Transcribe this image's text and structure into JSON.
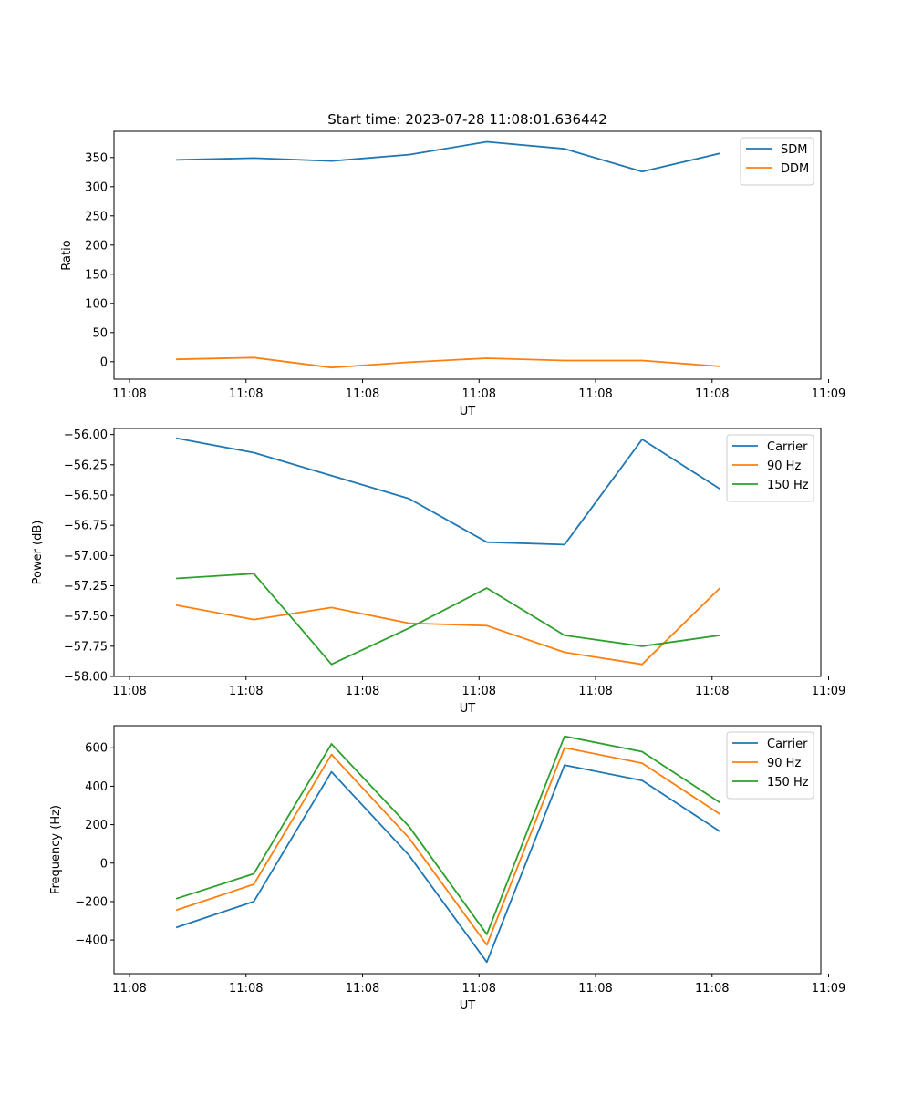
{
  "figure": {
    "title": "Start time: 2023-07-28 11:08:01.636442"
  },
  "chart_data": [
    {
      "type": "line",
      "title": "Start time: 2023-07-28 11:08:01.636442",
      "xlabel": "UT",
      "ylabel": "Ratio",
      "x": [
        1,
        2,
        3,
        4,
        5,
        6,
        7,
        8
      ],
      "xlim": [
        0.2,
        9.3
      ],
      "ylim": [
        -30,
        395
      ],
      "yticks": [
        0,
        50,
        100,
        150,
        200,
        250,
        300,
        350
      ],
      "yticklabels": [
        "0",
        "50",
        "100",
        "150",
        "200",
        "250",
        "300",
        "350"
      ],
      "xticks": [
        0.4,
        1.9,
        3.4,
        4.9,
        6.4,
        7.9,
        9.4
      ],
      "xticklabels": [
        "11:08",
        "11:08",
        "11:08",
        "11:08",
        "11:08",
        "11:08",
        "11:09"
      ],
      "legend_position": "top-right",
      "series": [
        {
          "name": "SDM",
          "color": "#1f77b4",
          "values": [
            346,
            349,
            344,
            355,
            377,
            365,
            326,
            357
          ]
        },
        {
          "name": "DDM",
          "color": "#ff7f0e",
          "values": [
            4,
            7,
            -10,
            -1,
            6,
            2,
            2,
            -8
          ]
        }
      ]
    },
    {
      "type": "line",
      "title": "",
      "xlabel": "UT",
      "ylabel": "Power (dB)",
      "x": [
        1,
        2,
        3,
        4,
        5,
        6,
        7,
        8
      ],
      "xlim": [
        0.2,
        9.3
      ],
      "ylim": [
        -58.0,
        -55.95
      ],
      "yticks": [
        -58.0,
        -57.75,
        -57.5,
        -57.25,
        -57.0,
        -56.75,
        -56.5,
        -56.25,
        -56.0
      ],
      "yticklabels": [
        "−58.00",
        "−57.75",
        "−57.50",
        "−57.25",
        "−57.00",
        "−56.75",
        "−56.50",
        "−56.25",
        "−56.00"
      ],
      "xticks": [
        0.4,
        1.9,
        3.4,
        4.9,
        6.4,
        7.9,
        9.4
      ],
      "xticklabels": [
        "11:08",
        "11:08",
        "11:08",
        "11:08",
        "11:08",
        "11:08",
        "11:09"
      ],
      "legend_position": "top-right",
      "series": [
        {
          "name": "Carrier",
          "color": "#1f77b4",
          "values": [
            -56.03,
            -56.15,
            -56.34,
            -56.53,
            -56.89,
            -56.91,
            -56.04,
            -56.45
          ]
        },
        {
          "name": "90 Hz",
          "color": "#ff7f0e",
          "values": [
            -57.41,
            -57.53,
            -57.43,
            -57.56,
            -57.58,
            -57.8,
            -57.9,
            -57.27
          ]
        },
        {
          "name": "150 Hz",
          "color": "#2ca02c",
          "values": [
            -57.19,
            -57.15,
            -57.9,
            -57.6,
            -57.27,
            -57.66,
            -57.75,
            -57.66
          ]
        }
      ]
    },
    {
      "type": "line",
      "title": "",
      "xlabel": "UT",
      "ylabel": "Frequency (Hz)",
      "x": [
        1,
        2,
        3,
        4,
        5,
        6,
        7,
        8
      ],
      "xlim": [
        0.2,
        9.3
      ],
      "ylim": [
        -575,
        715
      ],
      "yticks": [
        -400,
        -200,
        0,
        200,
        400,
        600
      ],
      "yticklabels": [
        "−400",
        "−200",
        "0",
        "200",
        "400",
        "600"
      ],
      "xticks": [
        0.4,
        1.9,
        3.4,
        4.9,
        6.4,
        7.9,
        9.4
      ],
      "xticklabels": [
        "11:08",
        "11:08",
        "11:08",
        "11:08",
        "11:08",
        "11:08",
        "11:09"
      ],
      "legend_position": "top-right",
      "series": [
        {
          "name": "Carrier",
          "color": "#1f77b4",
          "values": [
            -335,
            -200,
            475,
            40,
            -515,
            510,
            430,
            165
          ]
        },
        {
          "name": "90 Hz",
          "color": "#ff7f0e",
          "values": [
            -245,
            -110,
            565,
            130,
            -425,
            600,
            520,
            255
          ]
        },
        {
          "name": "150 Hz",
          "color": "#2ca02c",
          "values": [
            -185,
            -55,
            620,
            190,
            -370,
            660,
            580,
            315
          ]
        }
      ]
    }
  ]
}
